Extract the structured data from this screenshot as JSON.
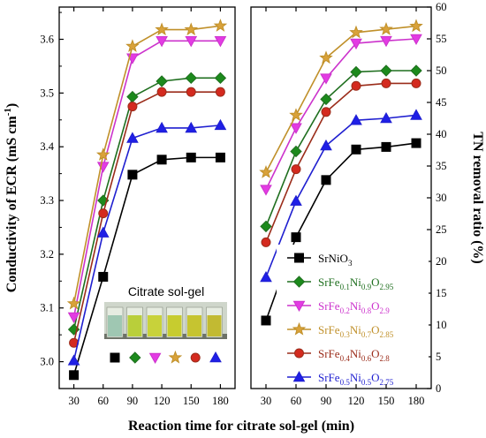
{
  "chart_data": [
    {
      "type": "line",
      "xlabel": "Reaction time for citrate sol-gel (min)",
      "ylabel": "Conductivity of ECR (mS cm-1)",
      "x": [
        30,
        60,
        90,
        120,
        150,
        180
      ],
      "xlim": [
        15,
        195
      ],
      "ylim": [
        2.95,
        3.66
      ],
      "yticks": [
        "3.0",
        "3.1",
        "3.2",
        "3.3",
        "3.4",
        "3.5",
        "3.6"
      ],
      "series": [
        {
          "key": "s1",
          "values": [
            2.975,
            3.158,
            3.348,
            3.376,
            3.38,
            3.38
          ]
        },
        {
          "key": "s2",
          "values": [
            3.06,
            3.3,
            3.493,
            3.522,
            3.528,
            3.528
          ]
        },
        {
          "key": "s3",
          "values": [
            3.083,
            3.363,
            3.565,
            3.597,
            3.597,
            3.597
          ]
        },
        {
          "key": "s4",
          "values": [
            3.108,
            3.385,
            3.587,
            3.618,
            3.618,
            3.625
          ]
        },
        {
          "key": "s5",
          "values": [
            3.035,
            3.276,
            3.475,
            3.502,
            3.502,
            3.502
          ]
        },
        {
          "key": "s6",
          "values": [
            3.002,
            3.24,
            3.416,
            3.435,
            3.435,
            3.44
          ]
        }
      ],
      "inset": {
        "title": "Citrate sol-gel",
        "marker_order": [
          "s1",
          "s2",
          "s3",
          "s4",
          "s5",
          "s6"
        ]
      }
    },
    {
      "type": "line",
      "ylabel": "TN removal ratio (%)",
      "x": [
        30,
        60,
        90,
        120,
        150,
        180
      ],
      "xlim": [
        15,
        195
      ],
      "ylim": [
        0,
        60
      ],
      "yticks": [
        "0",
        "5",
        "10",
        "15",
        "20",
        "25",
        "30",
        "35",
        "40",
        "45",
        "50",
        "55",
        "60"
      ],
      "legend_position": "lower-right",
      "series": [
        {
          "key": "s1",
          "name": "SrNiO3",
          "values": [
            10.7,
            23.8,
            32.8,
            37.6,
            38.0,
            38.6
          ]
        },
        {
          "key": "s2",
          "name": "SrFe0.1Ni0.9O2.95",
          "values": [
            25.5,
            37.3,
            45.5,
            49.8,
            50.0,
            50.0
          ]
        },
        {
          "key": "s3",
          "name": "SrFe0.2Ni0.8O2.9",
          "values": [
            31.3,
            41.0,
            48.8,
            54.3,
            54.7,
            55.0
          ]
        },
        {
          "key": "s4",
          "name": "SrFe0.3Ni0.7O2.85",
          "values": [
            34.0,
            43.0,
            52.0,
            56.0,
            56.5,
            57.0
          ]
        },
        {
          "key": "s5",
          "name": "SrFe0.4Ni0.6O2.8",
          "values": [
            23.0,
            34.5,
            43.5,
            47.6,
            48.0,
            48.0
          ]
        },
        {
          "key": "s6",
          "name": "SrFe0.5Ni0.5O2.75",
          "values": [
            17.5,
            29.5,
            38.2,
            42.2,
            42.5,
            43.0
          ]
        }
      ]
    }
  ],
  "legend": [
    {
      "key": "s1",
      "parts": [
        "SrNiO",
        "3"
      ]
    },
    {
      "key": "s2",
      "parts": [
        "SrFe",
        "0.1",
        "Ni",
        "0.9",
        "O",
        "2.95"
      ]
    },
    {
      "key": "s3",
      "parts": [
        "SrFe",
        "0.2",
        "Ni",
        "0.8",
        "O",
        "2.9"
      ]
    },
    {
      "key": "s4",
      "parts": [
        "SrFe",
        "0.3",
        "Ni",
        "0.7",
        "O",
        "2.85"
      ]
    },
    {
      "key": "s5",
      "parts": [
        "SrFe",
        "0.4",
        "Ni",
        "0.6",
        "O",
        "2.8"
      ]
    },
    {
      "key": "s6",
      "parts": [
        "SrFe",
        "0.5",
        "Ni",
        "0.5",
        "O",
        "2.75"
      ]
    }
  ],
  "left_ylabel_parts": [
    "Conductivity of ECR (mS cm",
    "-1",
    ")"
  ],
  "styles": {
    "s1": {
      "color": "#000000",
      "fill": "#000000",
      "marker": "square"
    },
    "s2": {
      "color": "#1f6f1f",
      "fill": "#1c8a1c",
      "marker": "diamond"
    },
    "s3": {
      "color": "#cc33cc",
      "fill": "#e33be3",
      "marker": "triangle-down"
    },
    "s4": {
      "color": "#c0902a",
      "fill": "#d9a23a",
      "marker": "star"
    },
    "s5": {
      "color": "#9b2c1a",
      "fill": "#d42a1f",
      "marker": "circle"
    },
    "s6": {
      "color": "#1f1fd0",
      "fill": "#1f1fe6",
      "marker": "triangle-up"
    }
  }
}
